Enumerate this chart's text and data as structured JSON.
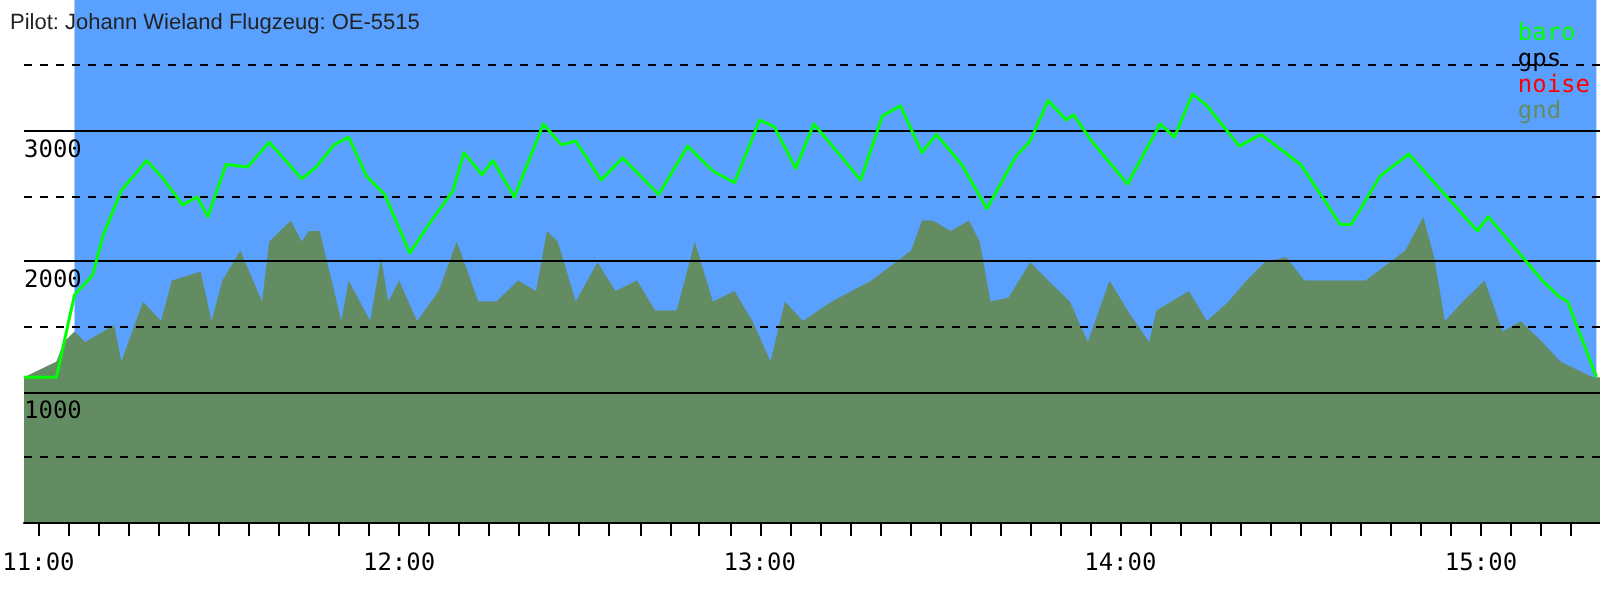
{
  "chart_data": {
    "type": "line",
    "title": "Pilot: Johann Wieland Flugzeug: OE-5515",
    "xlim": [
      10.96,
      15.33
    ],
    "xticks": [
      {
        "value": 11,
        "label": "11:00"
      },
      {
        "value": 11.083,
        "label": null
      },
      {
        "value": 11.167,
        "label": null
      },
      {
        "value": 11.25,
        "label": null
      },
      {
        "value": 11.333,
        "label": null
      },
      {
        "value": 11.417,
        "label": null
      },
      {
        "value": 11.5,
        "label": null
      },
      {
        "value": 11.583,
        "label": null
      },
      {
        "value": 11.667,
        "label": null
      },
      {
        "value": 11.75,
        "label": null
      },
      {
        "value": 11.833,
        "label": null
      },
      {
        "value": 11.917,
        "label": null
      },
      {
        "value": 12,
        "label": "12:00"
      },
      {
        "value": 12.083,
        "label": null
      },
      {
        "value": 12.167,
        "label": null
      },
      {
        "value": 12.25,
        "label": null
      },
      {
        "value": 12.333,
        "label": null
      },
      {
        "value": 12.417,
        "label": null
      },
      {
        "value": 12.5,
        "label": null
      },
      {
        "value": 12.583,
        "label": null
      },
      {
        "value": 12.667,
        "label": null
      },
      {
        "value": 12.75,
        "label": null
      },
      {
        "value": 12.833,
        "label": null
      },
      {
        "value": 12.917,
        "label": null
      },
      {
        "value": 13,
        "label": "13:00"
      },
      {
        "value": 13.083,
        "label": null
      },
      {
        "value": 13.167,
        "label": null
      },
      {
        "value": 13.25,
        "label": null
      },
      {
        "value": 13.333,
        "label": null
      },
      {
        "value": 13.417,
        "label": null
      },
      {
        "value": 13.5,
        "label": null
      },
      {
        "value": 13.583,
        "label": null
      },
      {
        "value": 13.667,
        "label": null
      },
      {
        "value": 13.75,
        "label": null
      },
      {
        "value": 13.833,
        "label": null
      },
      {
        "value": 13.917,
        "label": null
      },
      {
        "value": 14,
        "label": "14:00"
      },
      {
        "value": 14.083,
        "label": null
      },
      {
        "value": 14.167,
        "label": null
      },
      {
        "value": 14.25,
        "label": null
      },
      {
        "value": 14.333,
        "label": null
      },
      {
        "value": 14.417,
        "label": null
      },
      {
        "value": 14.5,
        "label": null
      },
      {
        "value": 14.583,
        "label": null
      },
      {
        "value": 14.667,
        "label": null
      },
      {
        "value": 14.75,
        "label": null
      },
      {
        "value": 14.833,
        "label": null
      },
      {
        "value": 14.917,
        "label": null
      },
      {
        "value": 15,
        "label": "15:00"
      },
      {
        "value": 15.083,
        "label": null
      },
      {
        "value": 15.167,
        "label": null
      },
      {
        "value": 15.25,
        "label": null
      }
    ],
    "ylim": [
      0,
      4000
    ],
    "yticks": [
      {
        "value": 500,
        "label": null
      },
      1000,
      {
        "value": 1500,
        "label": null
      },
      2000,
      {
        "value": 2500,
        "label": null
      },
      3000,
      {
        "value": 3500,
        "label": null
      }
    ],
    "grid": "y",
    "legend": "top right",
    "marker": "none",
    "line_style": "solid",
    "bands": [
      {
        "axis": "x",
        "from": 11.1,
        "to": 15.32,
        "color": "#5aa0ff"
      }
    ],
    "series": [
      {
        "name": "baro",
        "color": "#00ff00",
        "x": [
          10.96,
          11.05,
          11.1,
          11.15,
          11.18,
          11.23,
          11.3,
          11.34,
          11.4,
          11.44,
          11.47,
          11.52,
          11.58,
          11.64,
          11.73,
          11.77,
          11.82,
          11.86,
          11.91,
          11.96,
          12.03,
          12.09,
          12.15,
          12.18,
          12.23,
          12.26,
          12.32,
          12.4,
          12.45,
          12.49,
          12.56,
          12.62,
          12.72,
          12.8,
          12.87,
          12.93,
          13,
          13.04,
          13.1,
          13.15,
          13.19,
          13.28,
          13.34,
          13.39,
          13.45,
          13.49,
          13.56,
          13.63,
          13.71,
          13.75,
          13.8,
          13.85,
          13.87,
          13.92,
          14.02,
          14.11,
          14.15,
          14.2,
          14.24,
          14.33,
          14.39,
          14.5,
          14.61,
          14.64,
          14.72,
          14.8,
          14.9,
          14.99,
          15.02,
          15.1,
          15.17,
          15.22,
          15.24,
          15.32
        ],
        "values": [
          1110,
          1110,
          1740,
          1890,
          2200,
          2540,
          2770,
          2650,
          2430,
          2490,
          2340,
          2740,
          2720,
          2910,
          2630,
          2720,
          2890,
          2950,
          2650,
          2510,
          2060,
          2310,
          2540,
          2830,
          2660,
          2770,
          2490,
          3050,
          2890,
          2920,
          2620,
          2790,
          2510,
          2880,
          2690,
          2600,
          3080,
          3030,
          2710,
          3050,
          2920,
          2620,
          3110,
          3190,
          2830,
          2970,
          2740,
          2400,
          2800,
          2920,
          3230,
          3080,
          3120,
          2920,
          2590,
          3050,
          2950,
          3280,
          3190,
          2880,
          2970,
          2740,
          2280,
          2280,
          2650,
          2820,
          2510,
          2230,
          2340,
          2080,
          1850,
          1720,
          1690,
          1110
        ]
      },
      {
        "name": "gps",
        "color": "#000000"
      },
      {
        "name": "noise",
        "color": "#ff0000"
      },
      {
        "name": "gnd",
        "color": "#638c63",
        "type": "area",
        "x": [
          10.96,
          11.05,
          11.07,
          11.1,
          11.13,
          11.21,
          11.23,
          11.29,
          11.34,
          11.37,
          11.45,
          11.48,
          11.51,
          11.56,
          11.62,
          11.64,
          11.67,
          11.7,
          11.73,
          11.75,
          11.78,
          11.84,
          11.86,
          11.92,
          11.95,
          11.97,
          12,
          12.05,
          12.11,
          12.16,
          12.22,
          12.27,
          12.33,
          12.38,
          12.41,
          12.44,
          12.49,
          12.55,
          12.6,
          12.66,
          12.71,
          12.77,
          12.82,
          12.87,
          12.93,
          12.98,
          13.03,
          13.07,
          13.12,
          13.2,
          13.31,
          13.42,
          13.45,
          13.48,
          13.53,
          13.58,
          13.61,
          13.64,
          13.69,
          13.75,
          13.8,
          13.86,
          13.91,
          13.97,
          14.02,
          14.08,
          14.1,
          14.19,
          14.24,
          14.3,
          14.35,
          14.4,
          14.46,
          14.51,
          14.57,
          14.62,
          14.68,
          14.79,
          14.84,
          14.87,
          14.9,
          14.95,
          15.01,
          15.06,
          15.11,
          15.17,
          15.22,
          15.31,
          15.33
        ],
        "values": [
          1110,
          1230,
          1380,
          1460,
          1380,
          1510,
          1230,
          1690,
          1540,
          1850,
          1920,
          1540,
          1850,
          2080,
          1690,
          2150,
          2230,
          2310,
          2150,
          2230,
          2230,
          1540,
          1850,
          1540,
          2030,
          1690,
          1850,
          1540,
          1770,
          2150,
          1690,
          1690,
          1850,
          1770,
          2230,
          2150,
          1690,
          1990,
          1770,
          1850,
          1620,
          1620,
          2150,
          1690,
          1770,
          1540,
          1230,
          1690,
          1540,
          1690,
          1850,
          2080,
          2310,
          2310,
          2230,
          2310,
          2150,
          1690,
          1720,
          1990,
          1850,
          1690,
          1380,
          1850,
          1620,
          1380,
          1620,
          1770,
          1540,
          1690,
          1850,
          1990,
          2030,
          1850,
          1850,
          1850,
          1850,
          2080,
          2340,
          2030,
          1540,
          1690,
          1850,
          1460,
          1540,
          1380,
          1230,
          1110,
          1110
        ]
      }
    ]
  }
}
